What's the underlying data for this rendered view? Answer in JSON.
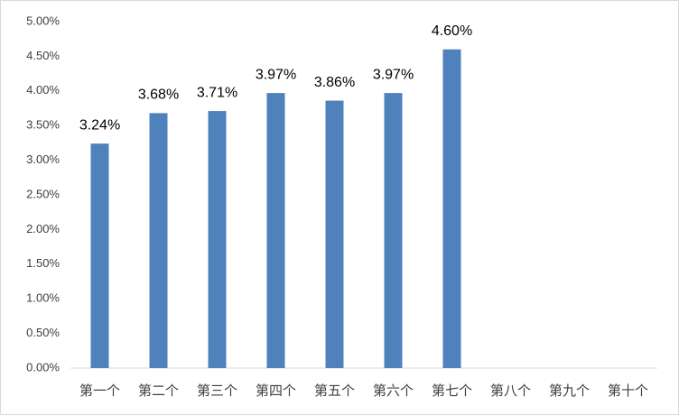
{
  "chart_data": {
    "type": "bar",
    "categories": [
      "第一个",
      "第二个",
      "第三个",
      "第四个",
      "第五个",
      "第六个",
      "第七个",
      "第八个",
      "第九个",
      "第十个"
    ],
    "values": [
      3.24,
      3.68,
      3.71,
      3.97,
      3.86,
      3.97,
      4.6,
      null,
      null,
      null
    ],
    "value_labels": [
      "3.24%",
      "3.68%",
      "3.71%",
      "3.97%",
      "3.86%",
      "3.97%",
      "4.60%",
      null,
      null,
      null
    ],
    "color": "#4f81bd",
    "ylim": [
      0,
      5
    ],
    "yticks": [
      {
        "value": 0,
        "label": "0.00%"
      },
      {
        "value": 0.5,
        "label": "0.50%"
      },
      {
        "value": 1,
        "label": "1.00%"
      },
      {
        "value": 1.5,
        "label": "1.50%"
      },
      {
        "value": 2,
        "label": "2.00%"
      },
      {
        "value": 2.5,
        "label": "2.50%"
      },
      {
        "value": 3,
        "label": "3.00%"
      },
      {
        "value": 3.5,
        "label": "3.50%"
      },
      {
        "value": 4,
        "label": "4.00%"
      },
      {
        "value": 4.5,
        "label": "4.50%"
      },
      {
        "value": 5,
        "label": "5.00%"
      }
    ],
    "grid": false
  }
}
